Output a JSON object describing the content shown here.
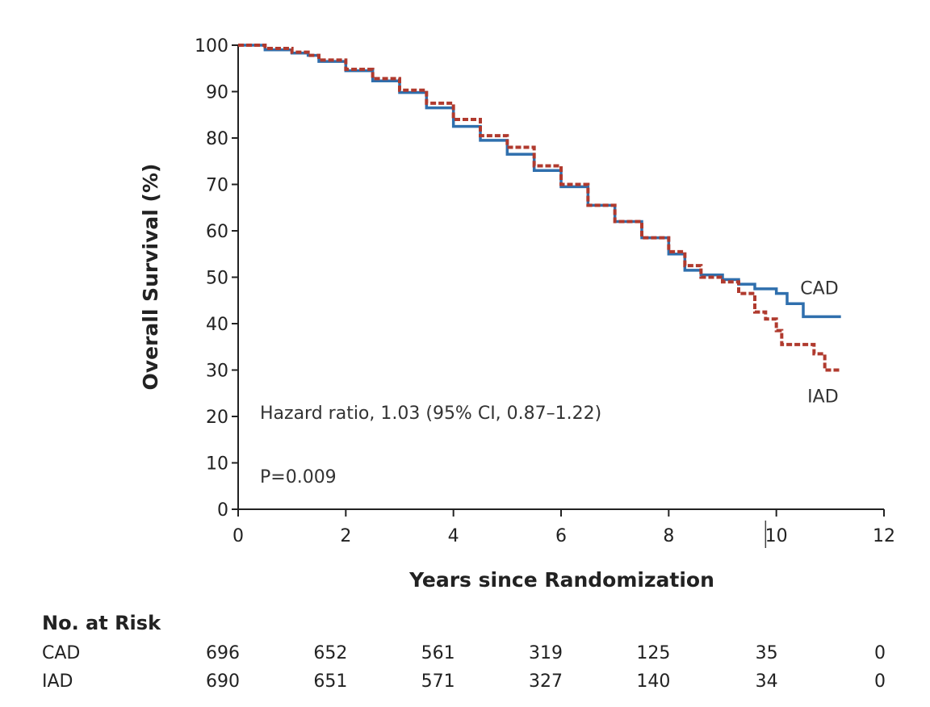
{
  "chart_data": {
    "type": "line",
    "step": true,
    "xlabel": "Years since Randomization",
    "ylabel": "Overall Survival (%)",
    "xlim": [
      0,
      12
    ],
    "ylim": [
      0,
      100
    ],
    "xticks": [
      0,
      2,
      4,
      6,
      8,
      10,
      12
    ],
    "yticks": [
      0,
      10,
      20,
      30,
      40,
      50,
      60,
      70,
      80,
      90,
      100
    ],
    "grid": false,
    "legend": "end-of-line labels",
    "annotations": {
      "hazard": "Hazard ratio, 1.03 (95% CI, 0.87–1.22)",
      "pvalue": "P=0.009"
    },
    "colors": {
      "CAD": "#2f6fad",
      "IAD": "#b03a2e"
    },
    "series": [
      {
        "name": "CAD",
        "style": "solid",
        "x": [
          0,
          0.5,
          1,
          1.3,
          1.5,
          2,
          2.5,
          3,
          3.5,
          4,
          4.5,
          5,
          5.5,
          6,
          6.5,
          7,
          7.5,
          8,
          8.3,
          8.6,
          9,
          9.3,
          9.6,
          10,
          10.2,
          10.45,
          10.5,
          10.8,
          11.2
        ],
        "y": [
          100,
          99,
          98.3,
          97.8,
          96.5,
          94.5,
          92.3,
          89.8,
          86.5,
          82.5,
          79.5,
          76.5,
          73,
          69.5,
          65.5,
          62,
          58.5,
          55,
          51.5,
          50.5,
          49.5,
          48.5,
          47.5,
          46.5,
          44.3,
          44.3,
          41.5,
          41.5,
          41.5
        ]
      },
      {
        "name": "IAD",
        "style": "dashed",
        "x": [
          0,
          0.5,
          1,
          1.3,
          1.5,
          2,
          2.5,
          3,
          3.5,
          4,
          4.5,
          5,
          5.5,
          6,
          6.5,
          7,
          7.5,
          8,
          8.3,
          8.6,
          9,
          9.3,
          9.6,
          9.8,
          10,
          10.1,
          10.4,
          10.7,
          10.9,
          11.2
        ],
        "y": [
          100,
          99.3,
          98.5,
          97.8,
          96.8,
          94.8,
          92.8,
          90.3,
          87.5,
          84,
          80.5,
          78,
          74,
          70,
          65.5,
          62,
          58.5,
          55.5,
          52.5,
          50,
          49,
          46.5,
          42.5,
          41,
          38.5,
          35.5,
          35.5,
          33.5,
          30,
          30
        ]
      }
    ],
    "censor_marks": [
      {
        "x": 9.8,
        "y": 0
      }
    ]
  },
  "risk_table": {
    "title": "No. at Risk",
    "timepoints": [
      0,
      2,
      4,
      6,
      8,
      10,
      12
    ],
    "rows": [
      {
        "label": "CAD",
        "values": [
          "696",
          "652",
          "561",
          "319",
          "125",
          "35",
          "0"
        ]
      },
      {
        "label": "IAD",
        "values": [
          "690",
          "651",
          "571",
          "327",
          "140",
          "34",
          "0"
        ]
      }
    ]
  }
}
